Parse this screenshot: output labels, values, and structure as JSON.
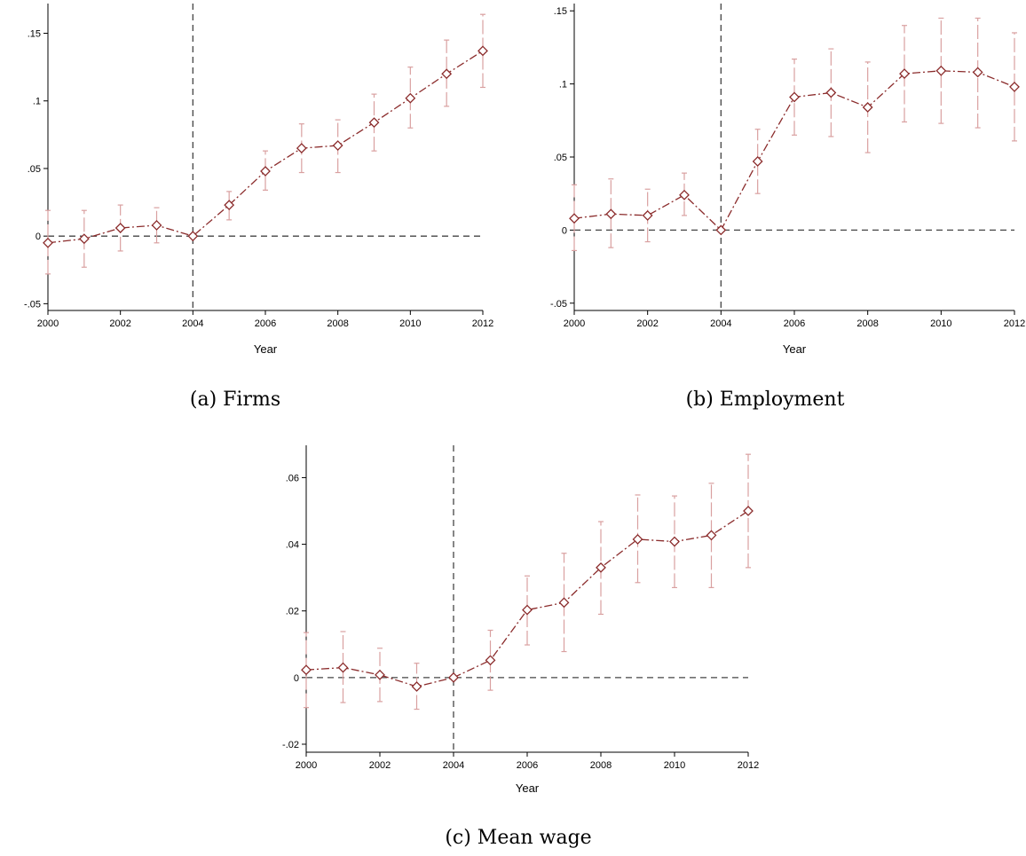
{
  "figure": {
    "background": "#ffffff",
    "line_color": "#8b2c2c",
    "ci_color": "#d9a0a0",
    "ref_line_color": "#444444"
  },
  "chart_data": [
    {
      "type": "line",
      "caption": "(a) Firms",
      "xlabel": "Year",
      "ylabel": "",
      "x": [
        2000,
        2001,
        2002,
        2003,
        2004,
        2005,
        2006,
        2007,
        2008,
        2009,
        2010,
        2011,
        2012
      ],
      "values": [
        -0.005,
        -0.002,
        0.006,
        0.008,
        0.0,
        0.023,
        0.048,
        0.065,
        0.067,
        0.084,
        0.102,
        0.12,
        0.137
      ],
      "ci_low": [
        -0.028,
        -0.023,
        -0.011,
        -0.005,
        0.0,
        0.012,
        0.034,
        0.047,
        0.047,
        0.063,
        0.08,
        0.096,
        0.11
      ],
      "ci_high": [
        0.019,
        0.019,
        0.023,
        0.021,
        0.0,
        0.033,
        0.063,
        0.083,
        0.086,
        0.105,
        0.125,
        0.145,
        0.164
      ],
      "xticks": [
        2000,
        2002,
        2004,
        2006,
        2008,
        2010,
        2012
      ],
      "yticks": [
        -0.05,
        0,
        0.05,
        0.1,
        0.15
      ],
      "ytick_labels": [
        "-.05",
        "0",
        ".05",
        ".1",
        ".15"
      ],
      "xlim": [
        2000,
        2012
      ],
      "ylim": [
        -0.055,
        0.172
      ],
      "vline_x": 2004,
      "hline_y": 0,
      "grid": false
    },
    {
      "type": "line",
      "caption": "(b) Employment",
      "xlabel": "Year",
      "ylabel": "",
      "x": [
        2000,
        2001,
        2002,
        2003,
        2004,
        2005,
        2006,
        2007,
        2008,
        2009,
        2010,
        2011,
        2012
      ],
      "values": [
        0.008,
        0.011,
        0.01,
        0.024,
        0.0,
        0.047,
        0.091,
        0.094,
        0.084,
        0.107,
        0.109,
        0.108,
        0.098
      ],
      "ci_low": [
        -0.014,
        -0.012,
        -0.008,
        0.01,
        0.0,
        0.025,
        0.065,
        0.064,
        0.053,
        0.074,
        0.073,
        0.07,
        0.061
      ],
      "ci_high": [
        0.031,
        0.035,
        0.028,
        0.039,
        0.0,
        0.069,
        0.117,
        0.124,
        0.115,
        0.14,
        0.145,
        0.145,
        0.135
      ],
      "xticks": [
        2000,
        2002,
        2004,
        2006,
        2008,
        2010,
        2012
      ],
      "yticks": [
        -0.05,
        0,
        0.05,
        0.1,
        0.15
      ],
      "ytick_labels": [
        "-.05",
        "0",
        ".05",
        ".1",
        ".15"
      ],
      "xlim": [
        2000,
        2012
      ],
      "ylim": [
        -0.055,
        0.155
      ],
      "vline_x": 2004,
      "hline_y": 0,
      "grid": false
    },
    {
      "type": "line",
      "caption": "(c) Mean wage",
      "xlabel": "Year",
      "ylabel": "",
      "x": [
        2000,
        2001,
        2002,
        2003,
        2004,
        2005,
        2006,
        2007,
        2008,
        2009,
        2010,
        2011,
        2012
      ],
      "values": [
        0.0023,
        0.003,
        0.0008,
        -0.0027,
        0.0,
        0.0052,
        0.0203,
        0.0225,
        0.033,
        0.0415,
        0.0408,
        0.0427,
        0.05
      ],
      "ci_low": [
        -0.009,
        -0.0075,
        -0.0072,
        -0.0095,
        0.0,
        -0.0038,
        0.0098,
        0.0078,
        0.019,
        0.0285,
        0.027,
        0.027,
        0.033
      ],
      "ci_high": [
        0.0135,
        0.0138,
        0.0088,
        0.0043,
        0.0,
        0.0142,
        0.0305,
        0.0373,
        0.0468,
        0.0548,
        0.0545,
        0.0583,
        0.067
      ],
      "xticks": [
        2000,
        2002,
        2004,
        2006,
        2008,
        2010,
        2012
      ],
      "yticks": [
        -0.02,
        0,
        0.02,
        0.04,
        0.06
      ],
      "ytick_labels": [
        "-.02",
        "0",
        ".02",
        ".04",
        ".06"
      ],
      "xlim": [
        2000,
        2012
      ],
      "ylim": [
        -0.0224,
        0.0697
      ],
      "vline_x": 2004,
      "hline_y": 0,
      "grid": false
    }
  ]
}
